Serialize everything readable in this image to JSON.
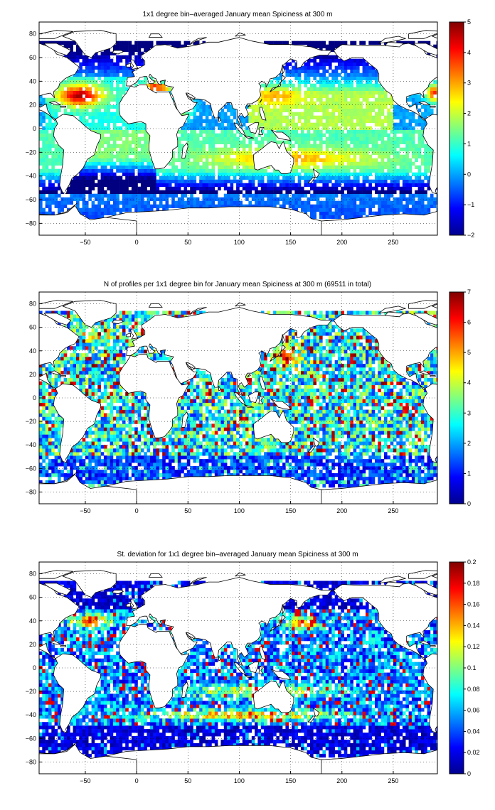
{
  "panels": [
    {
      "title": "1x1 degree bin–averaged January mean Spiciness at 300 m",
      "cbar": {
        "min": -2,
        "max": 5,
        "ticks": [
          -2,
          -1,
          0,
          1,
          2,
          3,
          4,
          5
        ]
      },
      "field": "mean"
    },
    {
      "title": "N of profiles per 1x1 degree bin for January mean Spiciness at 300 m (69511 in total)",
      "cbar": {
        "min": 0,
        "max": 7,
        "ticks": [
          0,
          1,
          2,
          3,
          4,
          5,
          6,
          7
        ]
      },
      "field": "count"
    },
    {
      "title": "St. deviation for 1x1 degree bin–averaged January mean Spiciness at 300 m",
      "cbar": {
        "min": 0,
        "max": 0.2,
        "ticks": [
          0,
          0.02,
          0.04,
          0.06,
          0.08,
          0.1,
          0.12,
          0.14,
          0.16,
          0.18,
          0.2
        ]
      },
      "field": "std"
    }
  ],
  "map": {
    "xlim": [
      -95,
      293
    ],
    "ylim": [
      -90,
      90
    ],
    "xticks": [
      -50,
      0,
      50,
      100,
      150,
      200,
      250
    ],
    "yticks": [
      -80,
      -60,
      -40,
      -20,
      0,
      20,
      40,
      60,
      80
    ],
    "grid": "dotted",
    "colormap": "jet",
    "land_color": "#ffffff",
    "coast_color": "#000000"
  }
}
